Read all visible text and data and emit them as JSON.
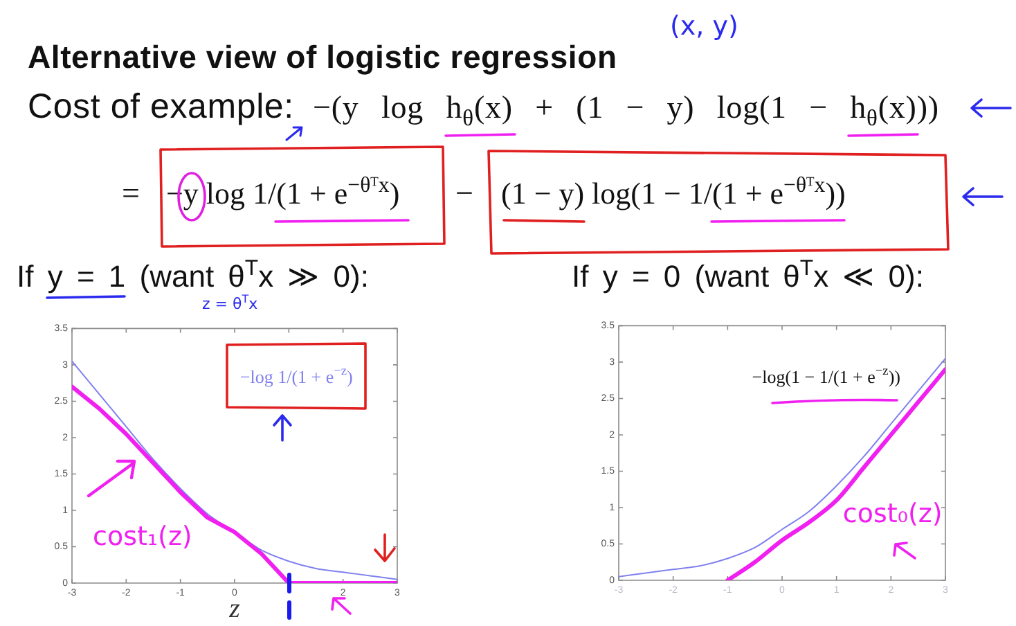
{
  "chart_data": [
    {
      "type": "other",
      "title": "Alternative view of logistic regression",
      "annotations": [
        "(x, y)",
        "Cost of example:",
        "−(y log h$_{θ}$(x) + (1 − y) log(1 − h$_{θ}$(x)))",
        "=",
        "−y log 1/(1 + e$^{−θᵀx}$)",
        "−",
        "(1 − y) log(1 − 1/(1 + e$^{−θᵀx}$))"
      ]
    },
    {
      "type": "line",
      "title": "If y = 1 (want θ$^{T}$x ≫ 0):",
      "xlabel": "z",
      "annotations": [
        "z = θ$^{T}$x"
      ],
      "x": [
        -3,
        -2.5,
        -2,
        -1.5,
        -1,
        -0.5,
        0,
        0.5,
        1,
        1.5,
        2,
        2.5,
        3
      ],
      "series": [
        {
          "name": "−log 1/(1 + e$^{−z}$)",
          "color": "#8080f0",
          "values": [
            3.05,
            2.6,
            2.15,
            1.7,
            1.3,
            0.95,
            0.7,
            0.45,
            0.3,
            0.2,
            0.15,
            0.1,
            0.05
          ]
        },
        {
          "name": "cost₁(z)",
          "color": "#f020f0",
          "values": [
            2.7,
            2.4,
            2.05,
            1.65,
            1.25,
            0.9,
            0.7,
            0.4,
            0,
            0,
            0,
            0,
            0
          ]
        }
      ],
      "xlim": [
        -3,
        3
      ],
      "ylim": [
        0,
        3.5
      ],
      "xticks": [
        -3,
        -2,
        -1,
        0,
        {
          "value": 1,
          "label": null
        },
        2,
        3
      ],
      "yticks": [
        0,
        0.5,
        1,
        1.5,
        2,
        2.5,
        3,
        3.5
      ]
    },
    {
      "type": "line",
      "title": "If y = 0 (want θ$^{T}$x ≪ 0):",
      "x": [
        -3,
        -2.5,
        -2,
        -1.5,
        -1,
        -0.5,
        0,
        0.5,
        1,
        1.5,
        2,
        2.5,
        3
      ],
      "series": [
        {
          "name": "−log(1 − 1/(1 + e$^{−z}$))",
          "color": "#8080f0",
          "values": [
            0.05,
            0.1,
            0.15,
            0.2,
            0.3,
            0.45,
            0.7,
            0.95,
            1.3,
            1.7,
            2.15,
            2.6,
            3.05
          ]
        },
        {
          "name": "cost₀(z)",
          "color": "#f020f0",
          "x": [
            -1,
            -0.5,
            0,
            0.5,
            1,
            1.5,
            2,
            2.5,
            3
          ],
          "values": [
            0,
            0.25,
            0.55,
            0.8,
            1.1,
            1.55,
            2,
            2.45,
            2.9
          ]
        }
      ],
      "xlim": [
        -3,
        3
      ],
      "ylim": [
        0,
        3.5
      ],
      "xticks": [
        -3,
        -2,
        -1,
        0,
        1,
        2,
        3
      ],
      "yticks": [
        0,
        0.5,
        1,
        1.5,
        2,
        2.5,
        3,
        3.5
      ]
    }
  ]
}
